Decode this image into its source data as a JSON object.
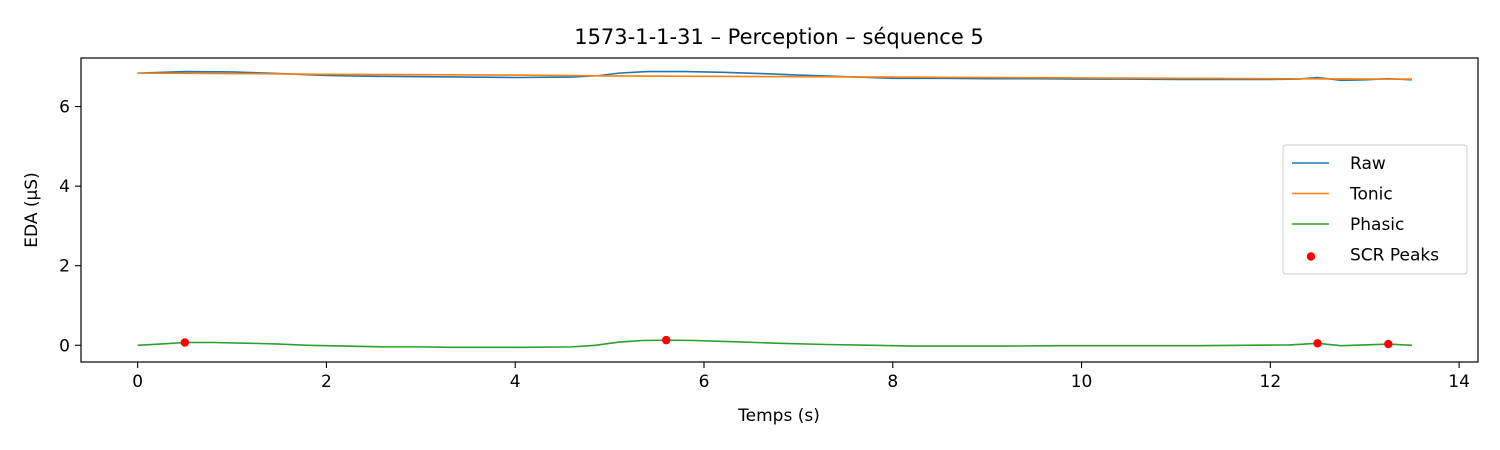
{
  "chart_data": {
    "type": "line",
    "title": "1573-1-1-31 – Perception – séquence 5",
    "xlabel": "Temps (s)",
    "ylabel": "EDA (µS)",
    "xlim": [
      -0.6,
      14.2
    ],
    "ylim": [
      -0.42,
      7.22
    ],
    "xticks": [
      0,
      2,
      4,
      6,
      8,
      10,
      12,
      14
    ],
    "xtick_labels": [
      "0",
      "2",
      "4",
      "6",
      "8",
      "10",
      "12",
      "14"
    ],
    "yticks": [
      0,
      2,
      4,
      6
    ],
    "ytick_labels": [
      "0",
      "2",
      "4",
      "6"
    ],
    "grid": false,
    "legend_position": "center-right",
    "series": [
      {
        "name": "Raw",
        "color": "#1f77b4",
        "x": [
          0,
          0.5,
          1.0,
          1.5,
          2.0,
          2.5,
          3.0,
          3.5,
          4.0,
          4.6,
          4.9,
          5.1,
          5.4,
          5.8,
          6.2,
          6.6,
          7.0,
          7.5,
          8.0,
          8.5,
          9.0,
          9.5,
          10.0,
          10.5,
          11.0,
          11.5,
          12.0,
          12.3,
          12.5,
          12.75,
          13.0,
          13.25,
          13.5
        ],
        "y": [
          6.84,
          6.88,
          6.87,
          6.83,
          6.78,
          6.76,
          6.75,
          6.74,
          6.73,
          6.74,
          6.78,
          6.84,
          6.88,
          6.88,
          6.86,
          6.83,
          6.79,
          6.75,
          6.71,
          6.71,
          6.7,
          6.7,
          6.69,
          6.69,
          6.68,
          6.68,
          6.68,
          6.69,
          6.73,
          6.66,
          6.67,
          6.7,
          6.67
        ]
      },
      {
        "name": "Tonic",
        "color": "#ff7f0e",
        "x": [
          0,
          1.0,
          2.0,
          3.0,
          4.0,
          5.0,
          6.0,
          7.0,
          8.0,
          9.0,
          10.0,
          11.0,
          12.0,
          13.0,
          13.5
        ],
        "y": [
          6.84,
          6.83,
          6.81,
          6.8,
          6.79,
          6.77,
          6.76,
          6.75,
          6.74,
          6.73,
          6.72,
          6.71,
          6.7,
          6.69,
          6.69
        ]
      },
      {
        "name": "Phasic",
        "color": "#2ca02c",
        "x": [
          0,
          0.3,
          0.5,
          0.8,
          1.2,
          1.5,
          1.8,
          2.2,
          2.6,
          3.0,
          3.3,
          3.7,
          4.1,
          4.6,
          4.85,
          5.1,
          5.35,
          5.6,
          5.9,
          6.3,
          6.8,
          7.3,
          7.8,
          8.2,
          8.6,
          9.2,
          9.7,
          10.2,
          10.7,
          11.2,
          11.7,
          12.2,
          12.5,
          12.75,
          13.0,
          13.25,
          13.5
        ],
        "y": [
          0.0,
          0.04,
          0.07,
          0.07,
          0.05,
          0.03,
          0.0,
          -0.02,
          -0.04,
          -0.04,
          -0.05,
          -0.05,
          -0.05,
          -0.04,
          0.0,
          0.08,
          0.12,
          0.13,
          0.12,
          0.09,
          0.05,
          0.02,
          0.0,
          -0.02,
          -0.02,
          -0.02,
          -0.01,
          -0.01,
          -0.01,
          -0.01,
          0.0,
          0.01,
          0.05,
          -0.01,
          0.01,
          0.03,
          0.0
        ]
      }
    ],
    "scatter_series": [
      {
        "name": "SCR Peaks",
        "color": "#ff0000",
        "x": [
          0.5,
          5.6,
          12.5,
          13.25
        ],
        "y": [
          0.07,
          0.13,
          0.05,
          0.03
        ]
      }
    ]
  }
}
